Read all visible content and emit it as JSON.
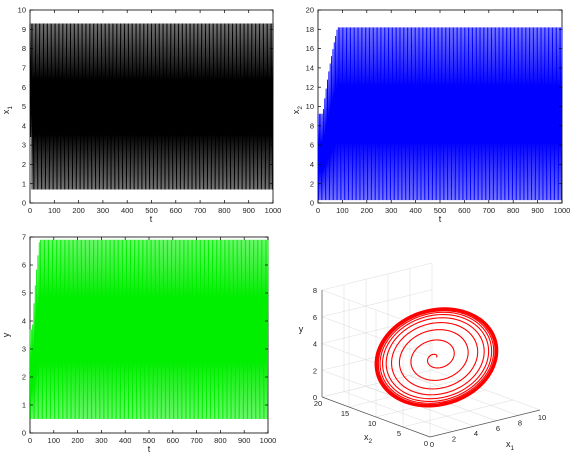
{
  "chart_data": [
    {
      "type": "line",
      "xlabel": "t",
      "ylabel": "x",
      "ylabel_sub": "1",
      "xlim": [
        0,
        1000
      ],
      "ylim": [
        0,
        10
      ],
      "xticks": [
        "0",
        "100",
        "200",
        "300",
        "400",
        "500",
        "600",
        "700",
        "800",
        "900",
        "1000"
      ],
      "yticks": [
        "0",
        "1",
        "2",
        "3",
        "4",
        "5",
        "6",
        "7",
        "8",
        "9",
        "10"
      ],
      "series": [
        {
          "color": "#000000",
          "x": [
            0,
            8,
            1000
          ],
          "y": [
            8.0,
            5.0,
            5.0
          ],
          "osc_min": 0.7,
          "osc_max": 9.3
        }
      ]
    },
    {
      "type": "line",
      "xlabel": "t",
      "ylabel": "x",
      "ylabel_sub": "2",
      "xlim": [
        0,
        1000
      ],
      "ylim": [
        0,
        20
      ],
      "xticks": [
        "0",
        "100",
        "200",
        "300",
        "400",
        "500",
        "600",
        "700",
        "800",
        "900",
        "1000"
      ],
      "yticks": [
        "0",
        "2",
        "4",
        "6",
        "8",
        "10",
        "12",
        "14",
        "16",
        "18",
        "20"
      ],
      "series": [
        {
          "color": "#0000ff",
          "x": [
            0,
            80,
            1000
          ],
          "y": [
            0.5,
            18.2,
            18.2
          ],
          "osc_min": 0.3,
          "osc_max": 18.2
        }
      ]
    },
    {
      "type": "line",
      "xlabel": "t",
      "ylabel": "y",
      "xlim": [
        0,
        1000
      ],
      "ylim": [
        0,
        7
      ],
      "xticks": [
        "0",
        "100",
        "200",
        "300",
        "400",
        "500",
        "600",
        "700",
        "800",
        "900",
        "1000"
      ],
      "yticks": [
        "0",
        "1",
        "2",
        "3",
        "4",
        "5",
        "6",
        "7"
      ],
      "series": [
        {
          "color": "#00ee00",
          "x": [
            0,
            40,
            1000
          ],
          "y": [
            0.8,
            6.9,
            6.9
          ],
          "osc_min": 0.5,
          "osc_max": 6.9
        }
      ]
    },
    {
      "type": "line3d",
      "xlabel": "x",
      "xlabel_sub": "1",
      "ylabel": "x",
      "ylabel_sub": "2",
      "zlabel": "y",
      "xlim": [
        0,
        10
      ],
      "ylim": [
        0,
        20
      ],
      "zlim": [
        0,
        8
      ],
      "xticks": [
        "0",
        "2",
        "4",
        "6",
        "8",
        "10"
      ],
      "yticks": [
        "0",
        "5",
        "10",
        "15",
        "20"
      ],
      "zticks": [
        "0",
        "2",
        "4",
        "6",
        "8"
      ],
      "series": [
        {
          "color": "#ff0000",
          "description_points": [
            [
              9,
              0.5,
              0.6
            ],
            [
              7,
              6,
              2.5
            ],
            [
              3,
              16,
              3.5
            ],
            [
              1,
              17,
              6.2
            ],
            [
              4,
              12,
              4.5
            ],
            [
              8,
              2,
              0.8
            ]
          ]
        }
      ]
    }
  ]
}
